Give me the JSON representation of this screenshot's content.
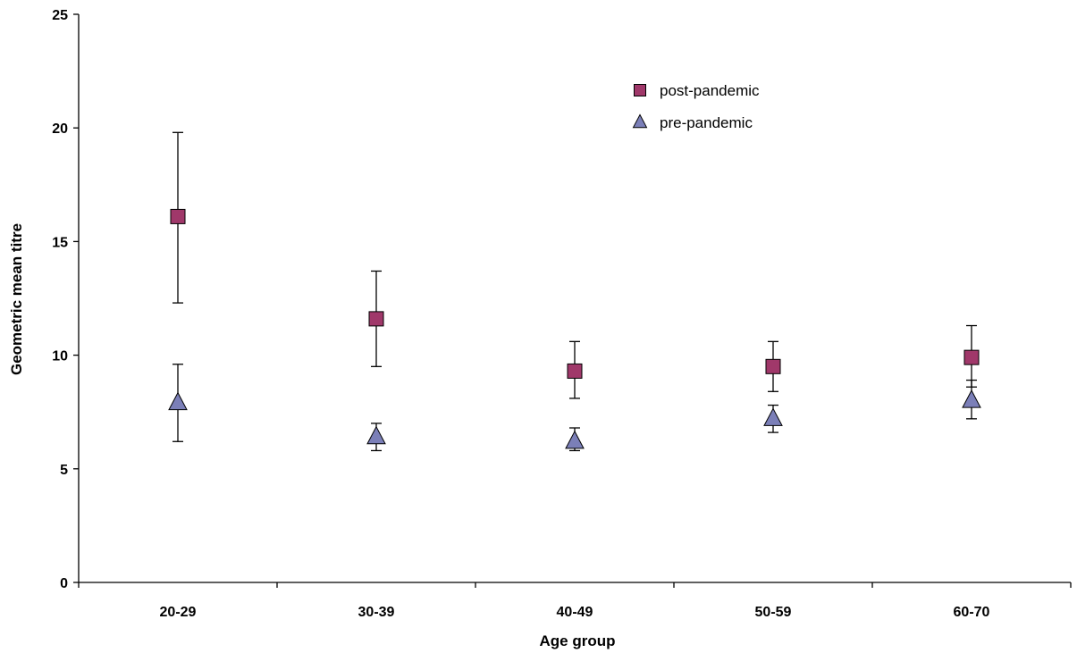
{
  "chart_data": {
    "type": "scatter",
    "title": "",
    "xlabel": "Age group",
    "ylabel": "Geometric mean titre",
    "ylim": [
      0,
      25
    ],
    "yticks": [
      0,
      5,
      10,
      15,
      20,
      25
    ],
    "categories": [
      "20-29",
      "30-39",
      "40-49",
      "50-59",
      "60-70"
    ],
    "grid": false,
    "legend_position": "top-right",
    "series": [
      {
        "name": "post-pandemic",
        "marker": "square",
        "color": "#a0386a",
        "values": [
          16.1,
          11.6,
          9.3,
          9.5,
          9.9
        ],
        "error_low": [
          12.3,
          9.5,
          8.1,
          8.4,
          8.6
        ],
        "error_high": [
          19.8,
          13.7,
          10.6,
          10.6,
          11.3
        ]
      },
      {
        "name": "pre-pandemic",
        "marker": "triangle",
        "color": "#7b7fb8",
        "values": [
          7.9,
          6.4,
          6.2,
          7.2,
          8.0
        ],
        "error_low": [
          6.2,
          5.8,
          5.8,
          6.6,
          7.2
        ],
        "error_high": [
          9.6,
          7.0,
          6.8,
          7.8,
          8.9
        ]
      }
    ]
  }
}
